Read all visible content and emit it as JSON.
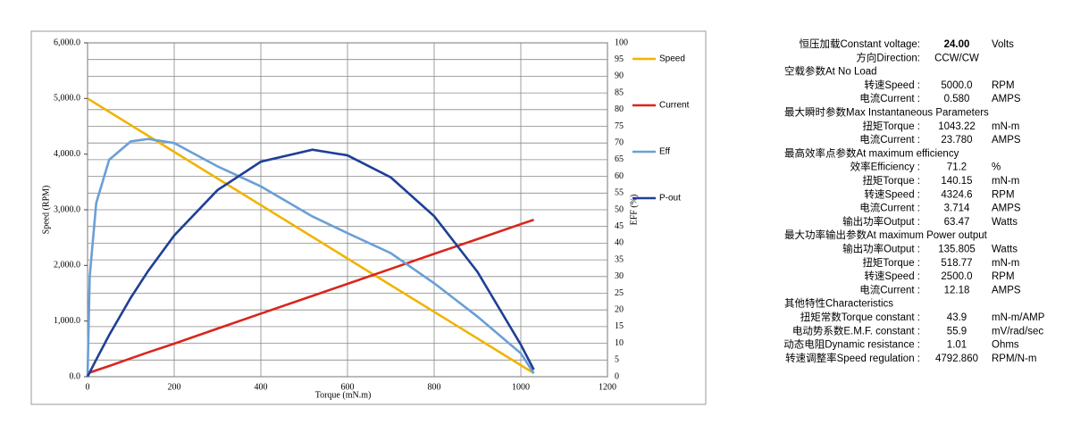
{
  "chart_data": {
    "type": "line",
    "xlabel": "Torque (mN.m)",
    "ylabel": "Speed (RPM)",
    "y2label": "EFF (%)",
    "x": [
      0,
      5,
      20,
      50,
      100,
      140,
      200,
      300,
      400,
      519,
      600,
      700,
      800,
      900,
      1000,
      1030
    ],
    "series": [
      {
        "name": "Speed",
        "color": "#f0b400",
        "axis": "y",
        "values": [
          5000,
          4976,
          4904,
          4760,
          4521,
          4329,
          4041,
          3562,
          3083,
          2513,
          2124,
          1645,
          1166,
          687,
          207,
          63
        ]
      },
      {
        "name": "Current",
        "color": "#d8261c",
        "axis": "y2",
        "values": [
          1,
          1.2,
          1.9,
          3.2,
          5.5,
          7.3,
          9.9,
          14.4,
          18.9,
          24.2,
          27.8,
          32.3,
          36.8,
          41.2,
          45.7,
          47
        ]
      },
      {
        "name": "Eff",
        "color": "#6a9fd6",
        "axis": "y2",
        "values": [
          0,
          30,
          52,
          65,
          70.5,
          71.2,
          70,
          63,
          57,
          48,
          43,
          37,
          28,
          18,
          7,
          1
        ]
      },
      {
        "name": "P-out",
        "color": "#1f3f96",
        "axis": "y2",
        "values": [
          0,
          1.3,
          5.1,
          12.5,
          23.7,
          31.7,
          42.3,
          55.9,
          64.4,
          68,
          66.3,
          59.7,
          48.1,
          31.4,
          9.6,
          2.1
        ]
      }
    ],
    "xlim": [
      0,
      1200
    ],
    "xticks": [
      0,
      200,
      400,
      600,
      800,
      1000,
      1200
    ],
    "ylim": [
      0,
      6000
    ],
    "yticks": [
      {
        "value": 0,
        "label": "0.0"
      },
      {
        "value": 1000,
        "label": "1,000.0"
      },
      {
        "value": 2000,
        "label": "2,000.0"
      },
      {
        "value": 3000,
        "label": "3,000.0"
      },
      {
        "value": 4000,
        "label": "4,000.0"
      },
      {
        "value": 5000,
        "label": "5,000.0"
      },
      {
        "value": 6000,
        "label": "6,000.0"
      }
    ],
    "y2lim": [
      0,
      100
    ],
    "y2ticks": [
      0,
      5,
      10,
      15,
      20,
      25,
      30,
      35,
      40,
      45,
      50,
      55,
      60,
      65,
      70,
      75,
      80,
      85,
      90,
      95,
      100
    ],
    "grid": true,
    "legend": "right"
  },
  "specs": [
    {
      "label": "恒压加载Constant voltage:",
      "value": "24.00",
      "unit": "Volts",
      "bold": true
    },
    {
      "label": "方向Direction:",
      "value": "CCW/CW"
    },
    {
      "section": "空载参数At No Load"
    },
    {
      "label": "转速Speed   :",
      "value": "5000.0",
      "unit": "RPM"
    },
    {
      "label": "电流Current  :",
      "value": "0.580",
      "unit": "AMPS"
    },
    {
      "section": "最大瞬时参数Max Instantaneous Parameters"
    },
    {
      "label": "扭矩Torque  :",
      "value": "1043.22",
      "unit": "mN-m"
    },
    {
      "label": "电流Current  :",
      "value": "23.780",
      "unit": "AMPS"
    },
    {
      "section": "最高效率点参数At maximum efficiency"
    },
    {
      "label": "效率Efficiency :",
      "value": "71.2",
      "unit": "%"
    },
    {
      "label": "扭矩Torque :",
      "value": "140.15",
      "unit": "mN-m"
    },
    {
      "label": "转速Speed :",
      "value": "4324.6",
      "unit": "RPM"
    },
    {
      "label": "电流Current :",
      "value": "3.714",
      "unit": "AMPS"
    },
    {
      "label": "输出功率Output :",
      "value": "63.47",
      "unit": "Watts"
    },
    {
      "section": "最大功率输出参数At maximum Power output"
    },
    {
      "label": "输出功率Output :",
      "value": "135.805",
      "unit": "Watts"
    },
    {
      "label": "扭矩Torque :",
      "value": "518.77",
      "unit": "mN-m"
    },
    {
      "label": "转速Speed :",
      "value": "2500.0",
      "unit": "RPM"
    },
    {
      "label": "电流Current :",
      "value": "12.18",
      "unit": "AMPS"
    },
    {
      "section": "其他特性Characteristics"
    },
    {
      "label": "扭矩常数Torque constant :",
      "value": "43.9",
      "unit": "mN-m/AMP"
    },
    {
      "label": "电动势系数E.M.F. constant :",
      "value": "55.9",
      "unit": "mV/rad/sec"
    },
    {
      "label": "动态电阻Dynamic resistance :",
      "value": "1.01",
      "unit": "Ohms"
    },
    {
      "label": "转速调整率Speed regulation :",
      "value": "4792.860",
      "unit": "RPM/N-m"
    }
  ]
}
